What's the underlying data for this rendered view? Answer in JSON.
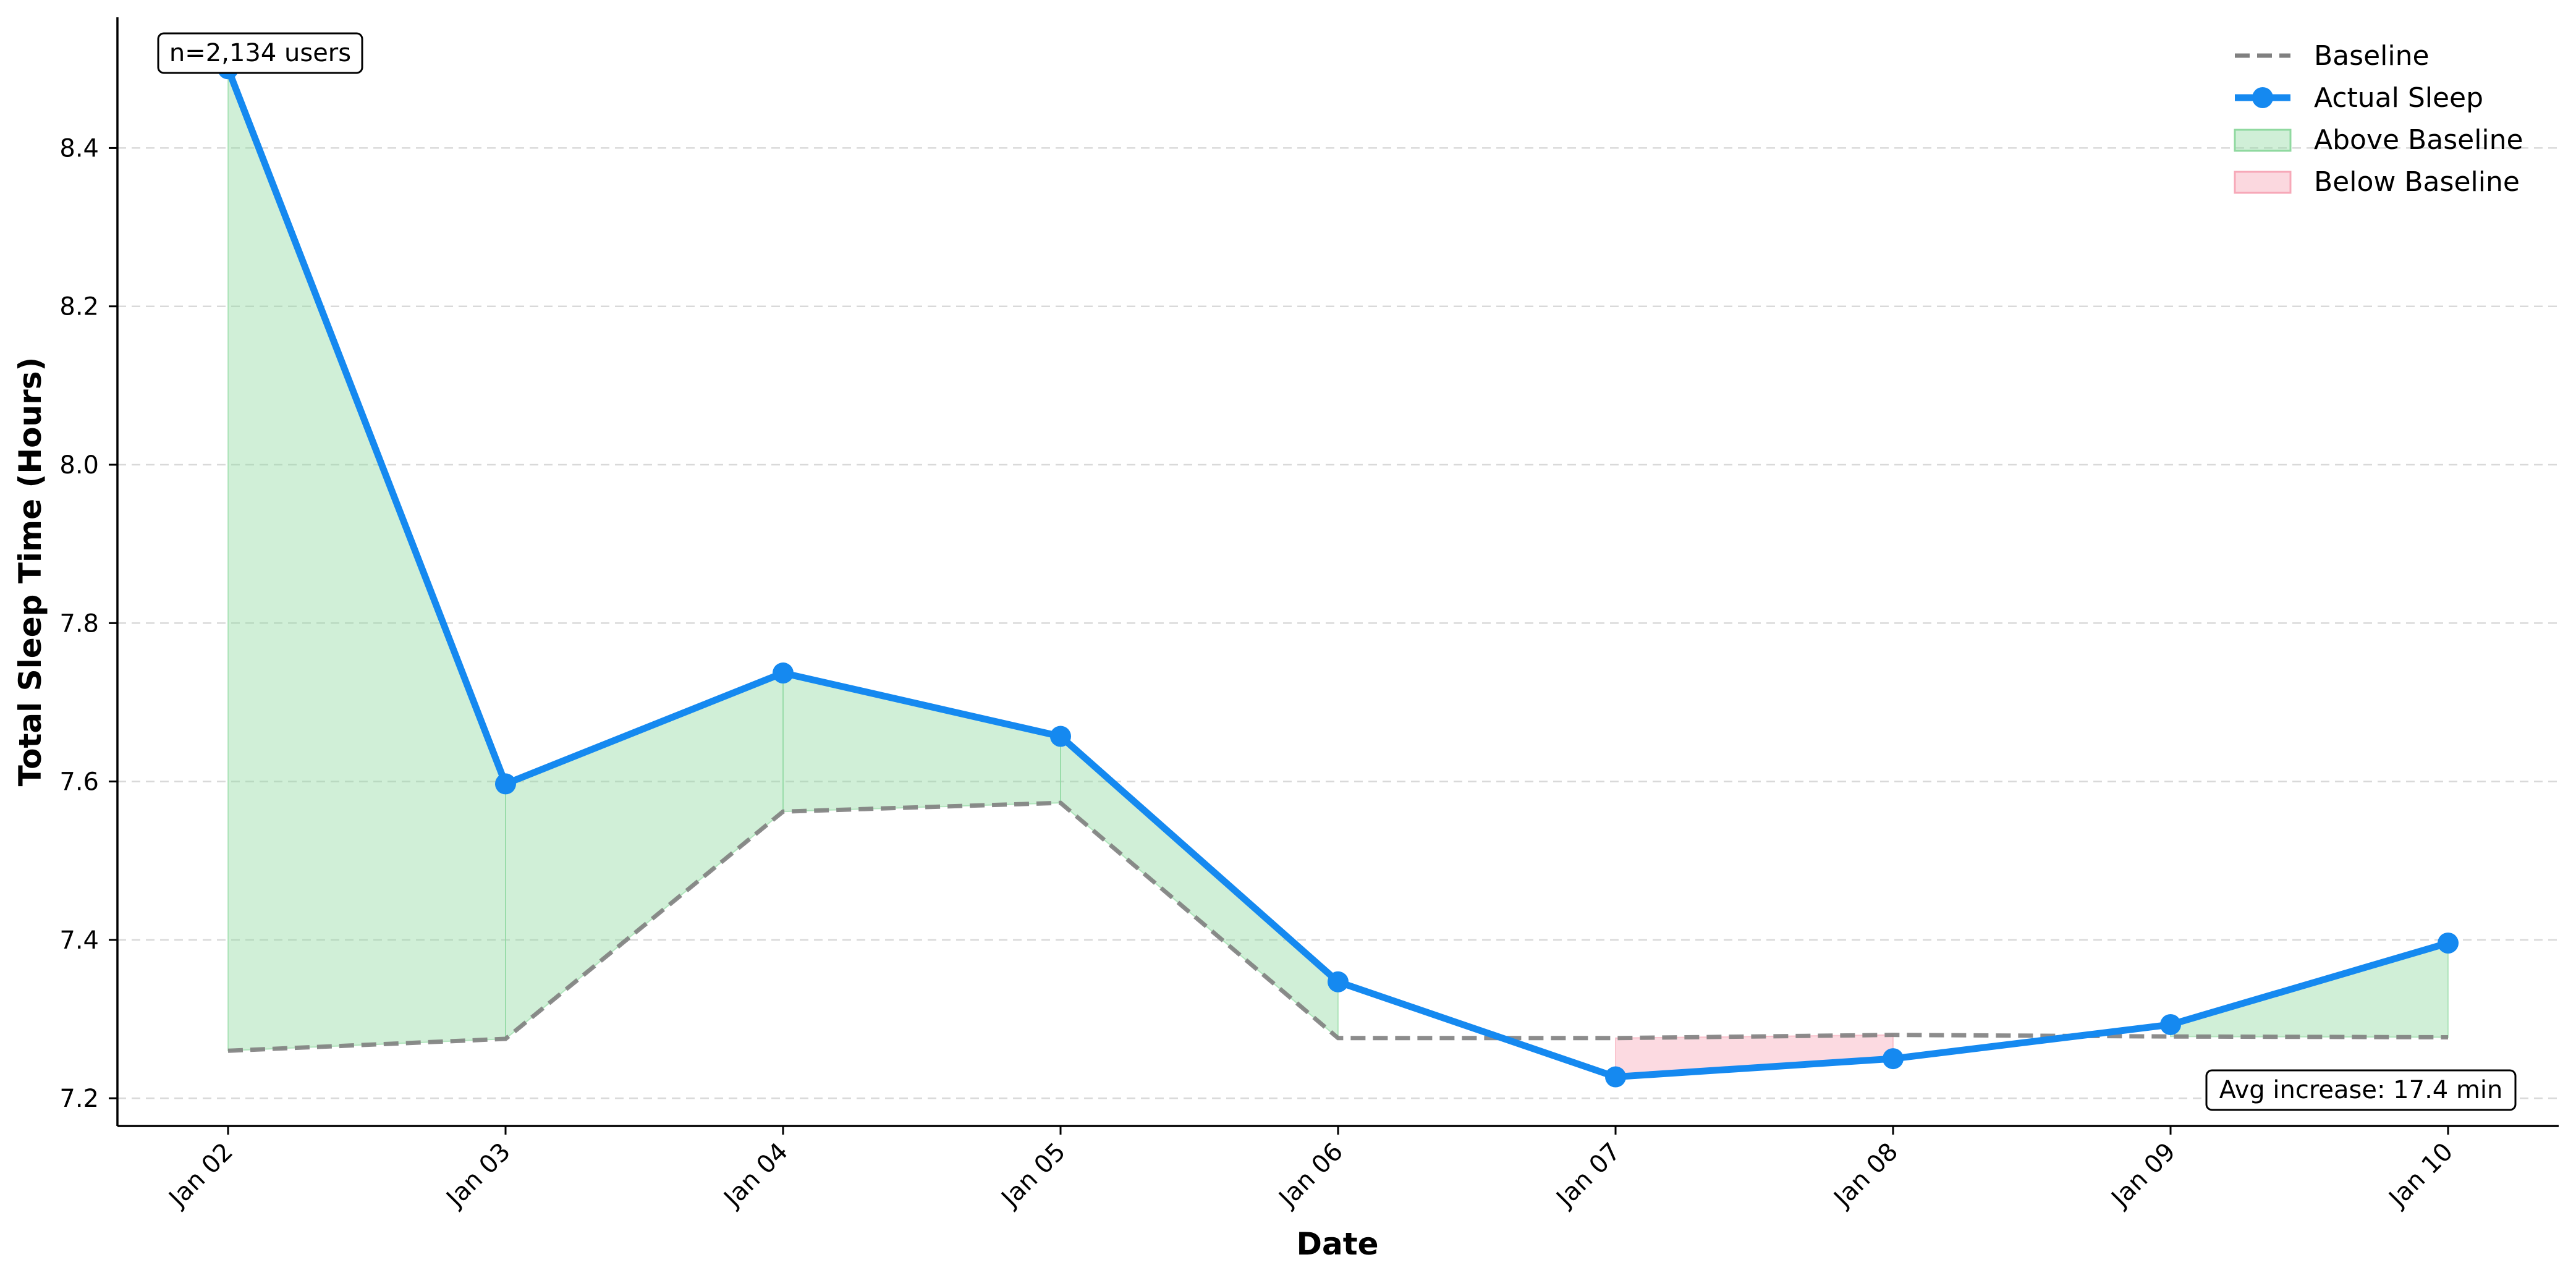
{
  "chart_data": {
    "type": "line",
    "categories": [
      "Jan 02",
      "Jan 03",
      "Jan 04",
      "Jan 05",
      "Jan 06",
      "Jan 07",
      "Jan 08",
      "Jan 09",
      "Jan 10"
    ],
    "series": [
      {
        "name": "Baseline",
        "style": "dashed",
        "color": "#808080",
        "values": [
          7.26,
          7.275,
          7.562,
          7.573,
          7.276,
          7.276,
          7.28,
          7.278,
          7.277
        ]
      },
      {
        "name": "Actual Sleep",
        "style": "solid-with-markers",
        "color": "#1589F0",
        "values": [
          8.5,
          7.597,
          7.737,
          7.657,
          7.347,
          7.227,
          7.25,
          7.293,
          7.396
        ]
      }
    ],
    "fills": [
      {
        "name": "Above Baseline",
        "color": "#90D9A0"
      },
      {
        "name": "Below Baseline",
        "color": "#F7A8B8"
      }
    ],
    "xlabel": "Date",
    "ylabel": "Total Sleep Time (Hours)",
    "ylim": [
      7.165,
      8.565
    ],
    "yticks": [
      "7.2",
      "7.4",
      "7.6",
      "7.8",
      "8.0",
      "8.2",
      "8.4"
    ],
    "grid": "horizontal-dashed",
    "legend_position": "top-right",
    "annotations": {
      "sample_size": "n=2,134 users",
      "avg_increase": "Avg increase: 17.4 min"
    }
  }
}
